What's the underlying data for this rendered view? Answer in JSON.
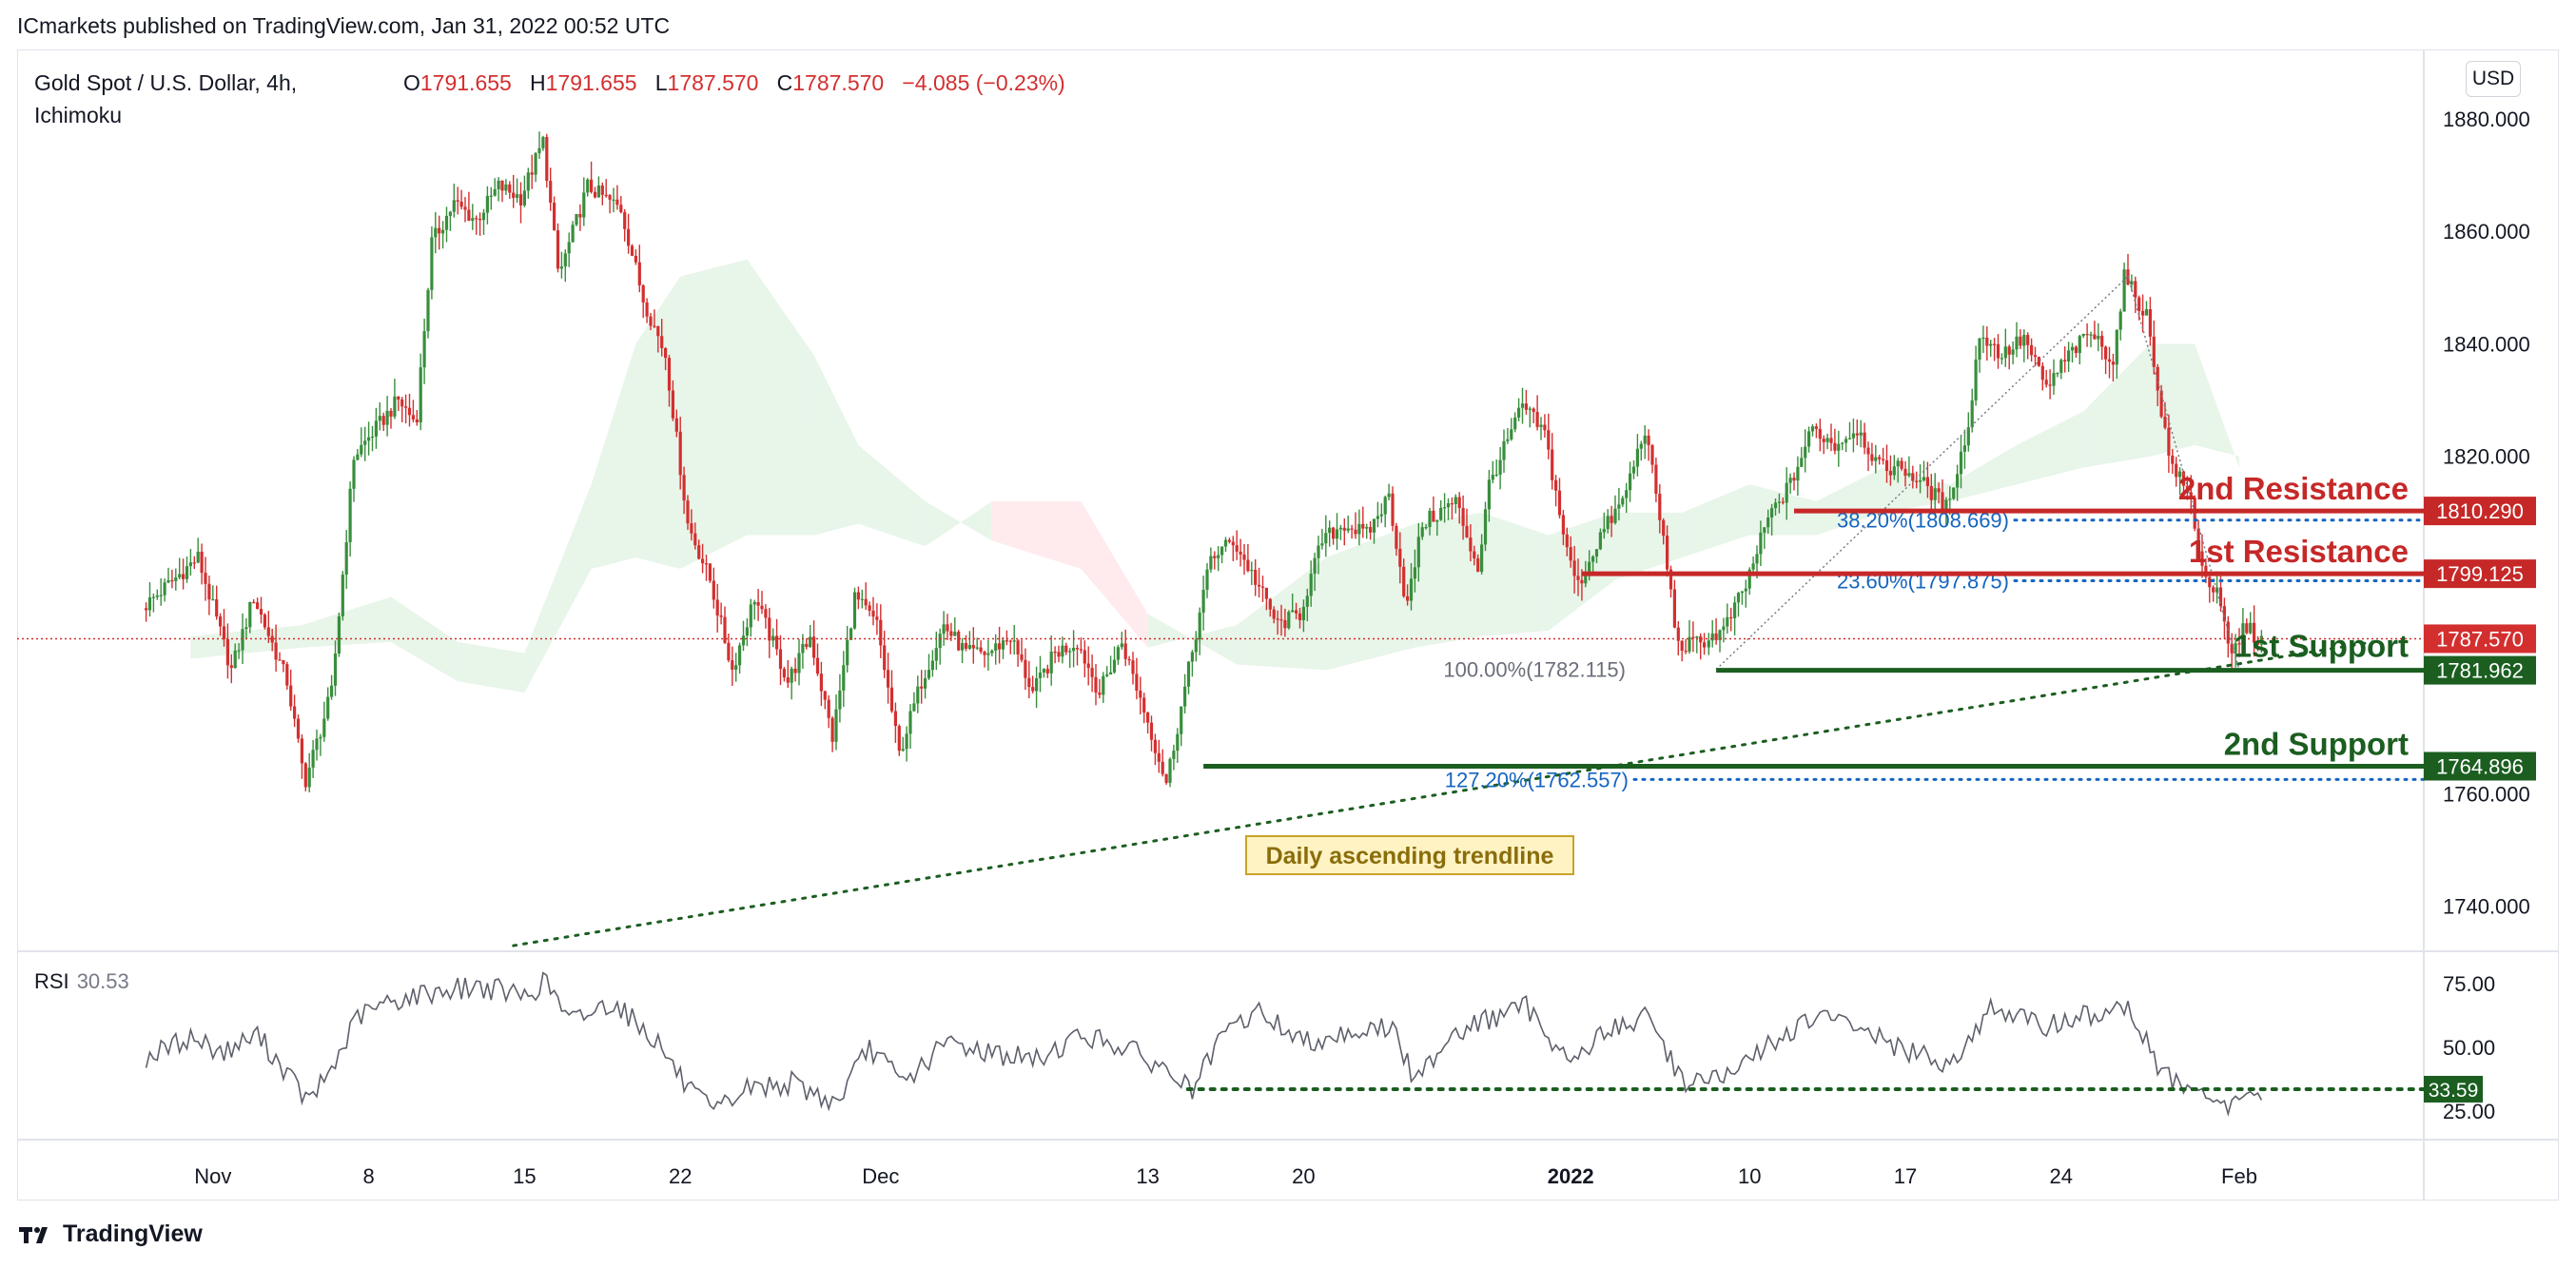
{
  "publisher_line": "ICmarkets published on TradingView.com, Jan 31, 2022 00:52 UTC",
  "legend": {
    "symbol": "Gold Spot / U.S. Dollar, 4h,",
    "indicator": "Ichimoku",
    "o_label": "O",
    "o_value": "1791.655",
    "h_label": "H",
    "h_value": "1791.655",
    "l_label": "L",
    "l_value": "1787.570",
    "c_label": "C",
    "c_value": "1787.570",
    "change": "−4.085 (−0.23%)"
  },
  "currency_button": "USD",
  "footer_brand": "TradingView",
  "colors": {
    "bull": "#388e3c",
    "bear": "#d32f2f",
    "resistance": "#c62828",
    "support": "#1b5e20",
    "fib": "#1565c0",
    "cloud_bull": "#e8f5e9",
    "cloud_bear": "#ffebee",
    "annotation_bg": "#fff3c4"
  },
  "chart_data": [
    {
      "type": "candlestick",
      "title": "Gold Spot / U.S. Dollar, 4h, Ichimoku",
      "price_axis_ticks": [
        1880,
        1860,
        1840,
        1820,
        1760,
        1740
      ],
      "price_axis_labels": [
        "1880.000",
        "1860.000",
        "1840.000",
        "1820.000",
        "1760.000",
        "1740.000"
      ],
      "ylim": [
        1733,
        1891
      ],
      "x_ticks": [
        {
          "label": "Nov",
          "day": 1
        },
        {
          "label": "8",
          "day": 8
        },
        {
          "label": "15",
          "day": 15
        },
        {
          "label": "22",
          "day": 22
        },
        {
          "label": "Dec",
          "day": 31
        },
        {
          "label": "13",
          "day": 43
        },
        {
          "label": "20",
          "day": 50
        },
        {
          "label": "2022",
          "day": 62,
          "bold": true
        },
        {
          "label": "10",
          "day": 70
        },
        {
          "label": "17",
          "day": 77
        },
        {
          "label": "24",
          "day": 84
        },
        {
          "label": "Feb",
          "day": 92
        }
      ],
      "price_path": [
        {
          "day": -2,
          "price": 1793
        },
        {
          "day": 0.5,
          "price": 1802
        },
        {
          "day": 2,
          "price": 1782
        },
        {
          "day": 3,
          "price": 1795
        },
        {
          "day": 4.5,
          "price": 1780
        },
        {
          "day": 5.3,
          "price": 1762
        },
        {
          "day": 6.5,
          "price": 1778
        },
        {
          "day": 7.5,
          "price": 1820
        },
        {
          "day": 8.5,
          "price": 1825
        },
        {
          "day": 9.5,
          "price": 1830
        },
        {
          "day": 10.3,
          "price": 1826
        },
        {
          "day": 11,
          "price": 1858
        },
        {
          "day": 12,
          "price": 1865
        },
        {
          "day": 13,
          "price": 1862
        },
        {
          "day": 14,
          "price": 1868
        },
        {
          "day": 15,
          "price": 1866
        },
        {
          "day": 16,
          "price": 1876
        },
        {
          "day": 16.7,
          "price": 1852
        },
        {
          "day": 18,
          "price": 1868
        },
        {
          "day": 19.5,
          "price": 1864
        },
        {
          "day": 20.5,
          "price": 1848
        },
        {
          "day": 21.5,
          "price": 1838
        },
        {
          "day": 22.5,
          "price": 1808
        },
        {
          "day": 23.5,
          "price": 1798
        },
        {
          "day": 24.5,
          "price": 1782
        },
        {
          "day": 25.5,
          "price": 1795
        },
        {
          "day": 27,
          "price": 1780
        },
        {
          "day": 28,
          "price": 1788
        },
        {
          "day": 29,
          "price": 1770
        },
        {
          "day": 30,
          "price": 1795
        },
        {
          "day": 31,
          "price": 1790
        },
        {
          "day": 32,
          "price": 1767
        },
        {
          "day": 33,
          "price": 1780
        },
        {
          "day": 34,
          "price": 1790
        },
        {
          "day": 35,
          "price": 1785
        },
        {
          "day": 36,
          "price": 1785
        },
        {
          "day": 37,
          "price": 1788
        },
        {
          "day": 38,
          "price": 1778
        },
        {
          "day": 39,
          "price": 1785
        },
        {
          "day": 40,
          "price": 1787
        },
        {
          "day": 41,
          "price": 1778
        },
        {
          "day": 42,
          "price": 1787
        },
        {
          "day": 43,
          "price": 1775
        },
        {
          "day": 44,
          "price": 1762
        },
        {
          "day": 45,
          "price": 1782
        },
        {
          "day": 46,
          "price": 1802
        },
        {
          "day": 47,
          "price": 1805
        },
        {
          "day": 48,
          "price": 1798
        },
        {
          "day": 49,
          "price": 1790
        },
        {
          "day": 50,
          "price": 1792
        },
        {
          "day": 51,
          "price": 1805
        },
        {
          "day": 52,
          "price": 1808
        },
        {
          "day": 53,
          "price": 1806
        },
        {
          "day": 54,
          "price": 1813
        },
        {
          "day": 54.8,
          "price": 1793
        },
        {
          "day": 55.5,
          "price": 1808
        },
        {
          "day": 57,
          "price": 1812
        },
        {
          "day": 58,
          "price": 1800
        },
        {
          "day": 58.5,
          "price": 1815
        },
        {
          "day": 60,
          "price": 1829
        },
        {
          "day": 61,
          "price": 1824
        },
        {
          "day": 62,
          "price": 1803
        },
        {
          "day": 62.5,
          "price": 1797
        },
        {
          "day": 63.5,
          "price": 1806
        },
        {
          "day": 64.5,
          "price": 1812
        },
        {
          "day": 65.5,
          "price": 1825
        },
        {
          "day": 66.3,
          "price": 1806
        },
        {
          "day": 67,
          "price": 1786
        },
        {
          "day": 68,
          "price": 1787
        },
        {
          "day": 69,
          "price": 1789
        },
        {
          "day": 70,
          "price": 1797
        },
        {
          "day": 71,
          "price": 1809
        },
        {
          "day": 72,
          "price": 1815
        },
        {
          "day": 73,
          "price": 1825
        },
        {
          "day": 74,
          "price": 1822
        },
        {
          "day": 75,
          "price": 1825
        },
        {
          "day": 76,
          "price": 1818
        },
        {
          "day": 77,
          "price": 1818
        },
        {
          "day": 78,
          "price": 1815
        },
        {
          "day": 79,
          "price": 1811
        },
        {
          "day": 80,
          "price": 1825
        },
        {
          "day": 80.5,
          "price": 1842
        },
        {
          "day": 81.5,
          "price": 1838
        },
        {
          "day": 82.5,
          "price": 1841
        },
        {
          "day": 83.5,
          "price": 1832
        },
        {
          "day": 84.5,
          "price": 1838
        },
        {
          "day": 85.5,
          "price": 1842
        },
        {
          "day": 86.5,
          "price": 1837
        },
        {
          "day": 87,
          "price": 1852
        },
        {
          "day": 88,
          "price": 1845
        },
        {
          "day": 89,
          "price": 1820
        },
        {
          "day": 90,
          "price": 1812
        },
        {
          "day": 90.5,
          "price": 1800
        },
        {
          "day": 91.2,
          "price": 1795
        },
        {
          "day": 91.8,
          "price": 1784
        },
        {
          "day": 92.4,
          "price": 1790
        },
        {
          "day": 93,
          "price": 1787.57
        }
      ],
      "last_price": {
        "value": 1787.57,
        "label": "1787.570"
      },
      "levels": [
        {
          "name": "2nd Resistance",
          "value": 1810.29,
          "label": "1810.290",
          "start_day": 72
        },
        {
          "name": "1st Resistance",
          "value": 1799.125,
          "label": "1799.125",
          "start_day": 62.5
        },
        {
          "name": "1st Support",
          "value": 1781.962,
          "label": "1781.962",
          "start_day": 68.5
        },
        {
          "name": "2nd Support",
          "value": 1764.896,
          "label": "1764.896",
          "start_day": 45.5
        }
      ],
      "fibonacci": [
        {
          "label": "38.20%(1808.669)",
          "value": 1808.669
        },
        {
          "label": "23.60%(1797.875)",
          "value": 1797.875
        },
        {
          "label": "100.00%(1782.115)",
          "value": 1782.115
        },
        {
          "label": "127.20%(1762.557)",
          "value": 1762.557
        }
      ],
      "fib_anchor": {
        "start": {
          "day": 68.5,
          "price": 1782.115
        },
        "end": {
          "day": 87,
          "price": 1852
        },
        "end2": {
          "day": 92,
          "price": 1782
        }
      },
      "trendline": {
        "label": "Daily ascending trendline",
        "start": {
          "day": 14.5,
          "price": 1733
        },
        "end": {
          "day": 98,
          "price": 1787
        }
      },
      "ichimoku_cloud": [
        {
          "day": 0,
          "a": 1788,
          "b": 1784
        },
        {
          "day": 5,
          "a": 1790,
          "b": 1786
        },
        {
          "day": 9,
          "a": 1795,
          "b": 1787
        },
        {
          "day": 12,
          "a": 1787,
          "b": 1780
        },
        {
          "day": 15,
          "a": 1785,
          "b": 1778
        },
        {
          "day": 18,
          "a": 1815,
          "b": 1800
        },
        {
          "day": 20,
          "a": 1840,
          "b": 1802
        },
        {
          "day": 22,
          "a": 1852,
          "b": 1800
        },
        {
          "day": 25,
          "a": 1855,
          "b": 1806
        },
        {
          "day": 28,
          "a": 1838,
          "b": 1806
        },
        {
          "day": 30,
          "a": 1822,
          "b": 1808
        },
        {
          "day": 33,
          "a": 1812,
          "b": 1804
        },
        {
          "day": 36,
          "a": 1805,
          "b": 1812
        },
        {
          "day": 40,
          "a": 1800,
          "b": 1812
        },
        {
          "day": 43,
          "a": 1786,
          "b": 1792
        },
        {
          "day": 47,
          "a": 1790,
          "b": 1783
        },
        {
          "day": 51,
          "a": 1802,
          "b": 1782
        },
        {
          "day": 55,
          "a": 1808,
          "b": 1786
        },
        {
          "day": 58,
          "a": 1810,
          "b": 1788
        },
        {
          "day": 61,
          "a": 1806,
          "b": 1789
        },
        {
          "day": 64,
          "a": 1810,
          "b": 1798
        },
        {
          "day": 67,
          "a": 1810,
          "b": 1802
        },
        {
          "day": 70,
          "a": 1815,
          "b": 1806
        },
        {
          "day": 73,
          "a": 1812,
          "b": 1806
        },
        {
          "day": 76,
          "a": 1818,
          "b": 1810
        },
        {
          "day": 79,
          "a": 1815,
          "b": 1812
        },
        {
          "day": 82,
          "a": 1822,
          "b": 1815
        },
        {
          "day": 85,
          "a": 1828,
          "b": 1818
        },
        {
          "day": 88,
          "a": 1840,
          "b": 1820
        },
        {
          "day": 90,
          "a": 1840,
          "b": 1822
        },
        {
          "day": 92,
          "a": 1818,
          "b": 1820
        }
      ]
    },
    {
      "type": "line",
      "title": "RSI",
      "current_value": "30.53",
      "ylim": [
        15,
        85
      ],
      "y_ticks": [
        75,
        50,
        25
      ],
      "y_tick_labels": [
        "75.00",
        "50.00",
        "25.00"
      ],
      "series": [
        {
          "values": [
            {
              "day": -2,
              "v": 46
            },
            {
              "day": 0,
              "v": 54
            },
            {
              "day": 1.5,
              "v": 48
            },
            {
              "day": 3,
              "v": 55
            },
            {
              "day": 4.5,
              "v": 38
            },
            {
              "day": 5.3,
              "v": 28
            },
            {
              "day": 6.5,
              "v": 44
            },
            {
              "day": 7.5,
              "v": 62
            },
            {
              "day": 9,
              "v": 68
            },
            {
              "day": 11,
              "v": 72
            },
            {
              "day": 13,
              "v": 74
            },
            {
              "day": 15,
              "v": 70
            },
            {
              "day": 16,
              "v": 76
            },
            {
              "day": 17,
              "v": 60
            },
            {
              "day": 19,
              "v": 68
            },
            {
              "day": 21,
              "v": 52
            },
            {
              "day": 22.3,
              "v": 34
            },
            {
              "day": 23.5,
              "v": 24
            },
            {
              "day": 25,
              "v": 34
            },
            {
              "day": 27,
              "v": 36
            },
            {
              "day": 29,
              "v": 28
            },
            {
              "day": 30.5,
              "v": 50
            },
            {
              "day": 32,
              "v": 36
            },
            {
              "day": 34,
              "v": 52
            },
            {
              "day": 36,
              "v": 48
            },
            {
              "day": 38,
              "v": 45
            },
            {
              "day": 40,
              "v": 55
            },
            {
              "day": 42,
              "v": 50
            },
            {
              "day": 44,
              "v": 40
            },
            {
              "day": 45,
              "v": 33
            },
            {
              "day": 46.5,
              "v": 56
            },
            {
              "day": 48,
              "v": 64
            },
            {
              "day": 50,
              "v": 52
            },
            {
              "day": 52,
              "v": 56
            },
            {
              "day": 54,
              "v": 58
            },
            {
              "day": 55,
              "v": 36
            },
            {
              "day": 56.5,
              "v": 55
            },
            {
              "day": 58,
              "v": 60
            },
            {
              "day": 60,
              "v": 66
            },
            {
              "day": 62,
              "v": 44
            },
            {
              "day": 63.5,
              "v": 56
            },
            {
              "day": 65.5,
              "v": 62
            },
            {
              "day": 67,
              "v": 37
            },
            {
              "day": 69,
              "v": 38
            },
            {
              "day": 71,
              "v": 52
            },
            {
              "day": 73,
              "v": 62
            },
            {
              "day": 75,
              "v": 58
            },
            {
              "day": 77,
              "v": 48
            },
            {
              "day": 79,
              "v": 44
            },
            {
              "day": 81,
              "v": 66
            },
            {
              "day": 83,
              "v": 58
            },
            {
              "day": 85,
              "v": 62
            },
            {
              "day": 87,
              "v": 66
            },
            {
              "day": 88.5,
              "v": 40
            },
            {
              "day": 90,
              "v": 32
            },
            {
              "day": 91.5,
              "v": 26
            },
            {
              "day": 92.5,
              "v": 34
            },
            {
              "day": 93,
              "v": 30.53
            }
          ]
        }
      ],
      "support_line": {
        "value": 33.59,
        "label": "33.59",
        "start_day": 44.8
      }
    }
  ]
}
